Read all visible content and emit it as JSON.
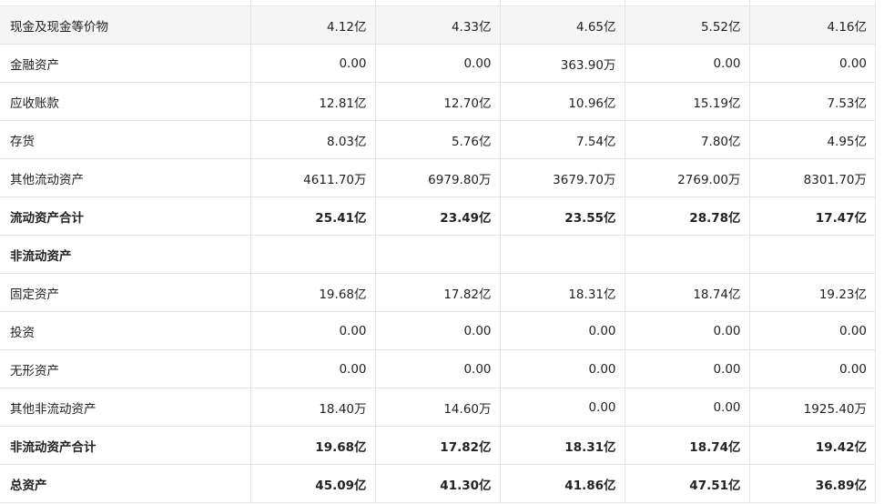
{
  "rows": [
    {
      "label": "现金及现金等价物",
      "values": [
        "4.12亿",
        "4.33亿",
        "4.65亿",
        "5.52亿",
        "4.16亿"
      ],
      "bold": false
    },
    {
      "label": "金融资产",
      "values": [
        "0.00",
        "0.00",
        "363.90万",
        "0.00",
        "0.00"
      ],
      "bold": false
    },
    {
      "label": "应收账款",
      "values": [
        "12.81亿",
        "12.70亿",
        "10.96亿",
        "15.19亿",
        "7.53亿"
      ],
      "bold": false
    },
    {
      "label": "存货",
      "values": [
        "8.03亿",
        "5.76亿",
        "7.54亿",
        "7.80亿",
        "4.95亿"
      ],
      "bold": false
    },
    {
      "label": "其他流动资产",
      "values": [
        "4611.70万",
        "6979.80万",
        "3679.70万",
        "2769.00万",
        "8301.70万"
      ],
      "bold": false
    },
    {
      "label": "流动资产合计",
      "values": [
        "25.41亿",
        "23.49亿",
        "23.55亿",
        "28.78亿",
        "17.47亿"
      ],
      "bold": true
    },
    {
      "label": "非流动资产",
      "values": [
        "",
        "",
        "",
        "",
        ""
      ],
      "bold": true
    },
    {
      "label": "固定资产",
      "values": [
        "19.68亿",
        "17.82亿",
        "18.31亿",
        "18.74亿",
        "19.23亿"
      ],
      "bold": false
    },
    {
      "label": "投资",
      "values": [
        "0.00",
        "0.00",
        "0.00",
        "0.00",
        "0.00"
      ],
      "bold": false
    },
    {
      "label": "无形资产",
      "values": [
        "0.00",
        "0.00",
        "0.00",
        "0.00",
        "0.00"
      ],
      "bold": false
    },
    {
      "label": "其他非流动资产",
      "values": [
        "18.40万",
        "14.60万",
        "0.00",
        "0.00",
        "1925.40万"
      ],
      "bold": false
    },
    {
      "label": "非流动资产合计",
      "values": [
        "19.68亿",
        "17.82亿",
        "18.31亿",
        "18.74亿",
        "19.42亿"
      ],
      "bold": true
    },
    {
      "label": "总资产",
      "values": [
        "45.09亿",
        "41.30亿",
        "41.86亿",
        "47.51亿",
        "36.89亿"
      ],
      "bold": true
    }
  ]
}
